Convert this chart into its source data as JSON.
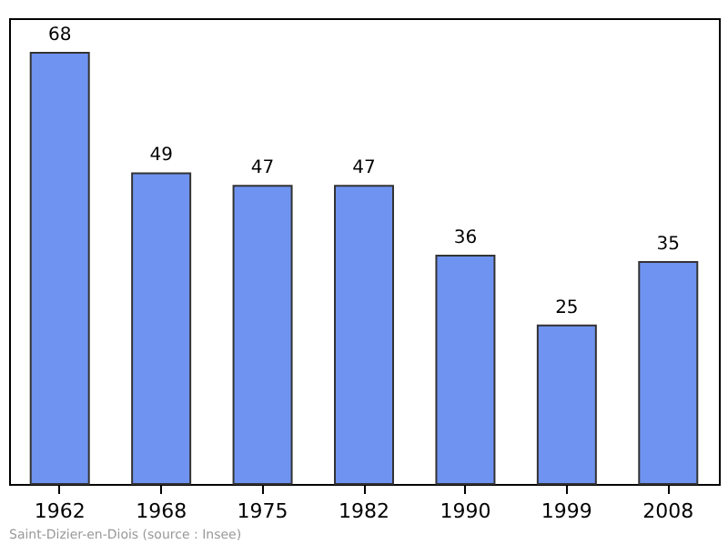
{
  "chart_data": {
    "type": "bar",
    "categories": [
      "1962",
      "1968",
      "1975",
      "1982",
      "1990",
      "1999",
      "2008"
    ],
    "values": [
      68,
      49,
      47,
      47,
      36,
      25,
      35
    ],
    "color": "#6f93f0",
    "data_labels": true,
    "grid": false,
    "annotations": [
      "Saint-Dizier-en-Diois    (source : Insee)"
    ]
  }
}
